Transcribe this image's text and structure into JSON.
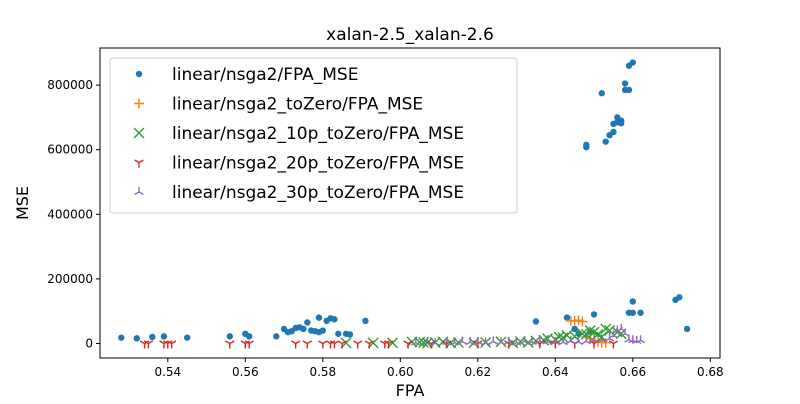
{
  "chart_data": {
    "type": "scatter",
    "title": "xalan-2.5_xalan-2.6",
    "xlabel": "FPA",
    "ylabel": "MSE",
    "xlim": [
      0.5225,
      0.6825
    ],
    "ylim": [
      -45000,
      915000
    ],
    "xticks": [
      0.54,
      0.56,
      0.58,
      0.6,
      0.62,
      0.64,
      0.66,
      0.68
    ],
    "xtick_labels": [
      "0.54",
      "0.56",
      "0.58",
      "0.60",
      "0.62",
      "0.64",
      "0.66",
      "0.68"
    ],
    "yticks": [
      0,
      200000,
      400000,
      600000,
      800000
    ],
    "ytick_labels": [
      "0",
      "200000",
      "400000",
      "600000",
      "800000"
    ],
    "grid": false,
    "legend_position": "top-left",
    "series": [
      {
        "name": "linear/nsga2/FPA_MSE",
        "color": "#1f77b4",
        "marker": "circle",
        "points": [
          [
            0.528,
            18000
          ],
          [
            0.532,
            16000
          ],
          [
            0.536,
            20000
          ],
          [
            0.539,
            22000
          ],
          [
            0.545,
            18000
          ],
          [
            0.556,
            22000
          ],
          [
            0.56,
            30000
          ],
          [
            0.561,
            22000
          ],
          [
            0.568,
            22000
          ],
          [
            0.57,
            45000
          ],
          [
            0.571,
            35000
          ],
          [
            0.572,
            38000
          ],
          [
            0.573,
            48000
          ],
          [
            0.574,
            50000
          ],
          [
            0.575,
            45000
          ],
          [
            0.576,
            65000
          ],
          [
            0.577,
            40000
          ],
          [
            0.578,
            38000
          ],
          [
            0.579,
            35000
          ],
          [
            0.579,
            80000
          ],
          [
            0.58,
            40000
          ],
          [
            0.581,
            70000
          ],
          [
            0.582,
            78000
          ],
          [
            0.583,
            75000
          ],
          [
            0.584,
            30000
          ],
          [
            0.586,
            30000
          ],
          [
            0.587,
            28000
          ],
          [
            0.591,
            70000
          ],
          [
            0.635,
            68000
          ],
          [
            0.643,
            80000
          ],
          [
            0.645,
            45000
          ],
          [
            0.649,
            35000
          ],
          [
            0.65,
            90000
          ],
          [
            0.646,
            30000
          ],
          [
            0.648,
            608000
          ],
          [
            0.648,
            615000
          ],
          [
            0.652,
            775000
          ],
          [
            0.653,
            625000
          ],
          [
            0.654,
            645000
          ],
          [
            0.655,
            655000
          ],
          [
            0.655,
            680000
          ],
          [
            0.656,
            685000
          ],
          [
            0.656,
            700000
          ],
          [
            0.657,
            690000
          ],
          [
            0.657,
            682000
          ],
          [
            0.658,
            805000
          ],
          [
            0.658,
            785000
          ],
          [
            0.659,
            860000
          ],
          [
            0.66,
            870000
          ],
          [
            0.659,
            785000
          ],
          [
            0.66,
            130000
          ],
          [
            0.659,
            95000
          ],
          [
            0.66,
            95000
          ],
          [
            0.662,
            95000
          ],
          [
            0.671,
            135000
          ],
          [
            0.672,
            143000
          ],
          [
            0.674,
            45000
          ]
        ]
      },
      {
        "name": "linear/nsga2_toZero/FPA_MSE",
        "color": "#ff7f0e",
        "marker": "plus",
        "points": [
          [
            0.644,
            70000
          ],
          [
            0.645,
            70000
          ],
          [
            0.646,
            72000
          ],
          [
            0.647,
            68000
          ],
          [
            0.648,
            20000
          ],
          [
            0.649,
            15000
          ],
          [
            0.65,
            10000
          ],
          [
            0.651,
            5000
          ],
          [
            0.652,
            3000
          ],
          [
            0.653,
            2000
          ]
        ]
      },
      {
        "name": "linear/nsga2_10p_toZero/FPA_MSE",
        "color": "#2ca02c",
        "marker": "x",
        "points": [
          [
            0.586,
            2000
          ],
          [
            0.593,
            2000
          ],
          [
            0.598,
            2000
          ],
          [
            0.603,
            5000
          ],
          [
            0.605,
            4000
          ],
          [
            0.606,
            3000
          ],
          [
            0.607,
            2000
          ],
          [
            0.609,
            3000
          ],
          [
            0.611,
            5000
          ],
          [
            0.613,
            2000
          ],
          [
            0.615,
            3000
          ],
          [
            0.619,
            2000
          ],
          [
            0.622,
            3000
          ],
          [
            0.626,
            5000
          ],
          [
            0.629,
            2000
          ],
          [
            0.631,
            6000
          ],
          [
            0.633,
            3000
          ],
          [
            0.635,
            8000
          ],
          [
            0.637,
            10000
          ],
          [
            0.638,
            15000
          ],
          [
            0.64,
            12000
          ],
          [
            0.641,
            20000
          ],
          [
            0.642,
            18000
          ],
          [
            0.643,
            25000
          ],
          [
            0.645,
            22000
          ],
          [
            0.647,
            30000
          ],
          [
            0.648,
            28000
          ],
          [
            0.649,
            40000
          ],
          [
            0.65,
            35000
          ],
          [
            0.651,
            28000
          ],
          [
            0.652,
            20000
          ],
          [
            0.653,
            45000
          ],
          [
            0.654,
            40000
          ],
          [
            0.656,
            35000
          ],
          [
            0.657,
            30000
          ]
        ]
      },
      {
        "name": "linear/nsga2_20p_toZero/FPA_MSE",
        "color": "#d62728",
        "marker": "tri_down",
        "points": [
          [
            0.534,
            0
          ],
          [
            0.535,
            0
          ],
          [
            0.539,
            0
          ],
          [
            0.54,
            0
          ],
          [
            0.541,
            0
          ],
          [
            0.556,
            0
          ],
          [
            0.56,
            0
          ],
          [
            0.561,
            0
          ],
          [
            0.573,
            0
          ],
          [
            0.576,
            0
          ],
          [
            0.58,
            0
          ],
          [
            0.582,
            0
          ],
          [
            0.583,
            0
          ],
          [
            0.585,
            0
          ],
          [
            0.589,
            0
          ],
          [
            0.592,
            0
          ],
          [
            0.596,
            0
          ],
          [
            0.597,
            0
          ],
          [
            0.602,
            0
          ],
          [
            0.608,
            0
          ],
          [
            0.612,
            0
          ],
          [
            0.62,
            0
          ],
          [
            0.628,
            0
          ],
          [
            0.636,
            0
          ],
          [
            0.64,
            0
          ],
          [
            0.645,
            0
          ],
          [
            0.65,
            0
          ],
          [
            0.655,
            0
          ]
        ]
      },
      {
        "name": "linear/nsga2_30p_toZero/FPA_MSE",
        "color": "#9467bd",
        "marker": "tri_up",
        "points": [
          [
            0.604,
            3000
          ],
          [
            0.607,
            4000
          ],
          [
            0.609,
            2000
          ],
          [
            0.612,
            5000
          ],
          [
            0.614,
            3000
          ],
          [
            0.616,
            6000
          ],
          [
            0.618,
            4000
          ],
          [
            0.62,
            5000
          ],
          [
            0.622,
            3000
          ],
          [
            0.624,
            6000
          ],
          [
            0.626,
            4000
          ],
          [
            0.628,
            5000
          ],
          [
            0.63,
            3000
          ],
          [
            0.632,
            7000
          ],
          [
            0.634,
            5000
          ],
          [
            0.636,
            8000
          ],
          [
            0.638,
            6000
          ],
          [
            0.64,
            5000
          ],
          [
            0.642,
            4000
          ],
          [
            0.644,
            8000
          ],
          [
            0.646,
            5000
          ],
          [
            0.648,
            7000
          ],
          [
            0.65,
            10000
          ],
          [
            0.652,
            12000
          ],
          [
            0.654,
            15000
          ],
          [
            0.655,
            25000
          ],
          [
            0.656,
            40000
          ],
          [
            0.657,
            45000
          ],
          [
            0.658,
            30000
          ],
          [
            0.659,
            12000
          ],
          [
            0.66,
            10000
          ],
          [
            0.661,
            8000
          ],
          [
            0.662,
            10000
          ]
        ]
      }
    ]
  }
}
